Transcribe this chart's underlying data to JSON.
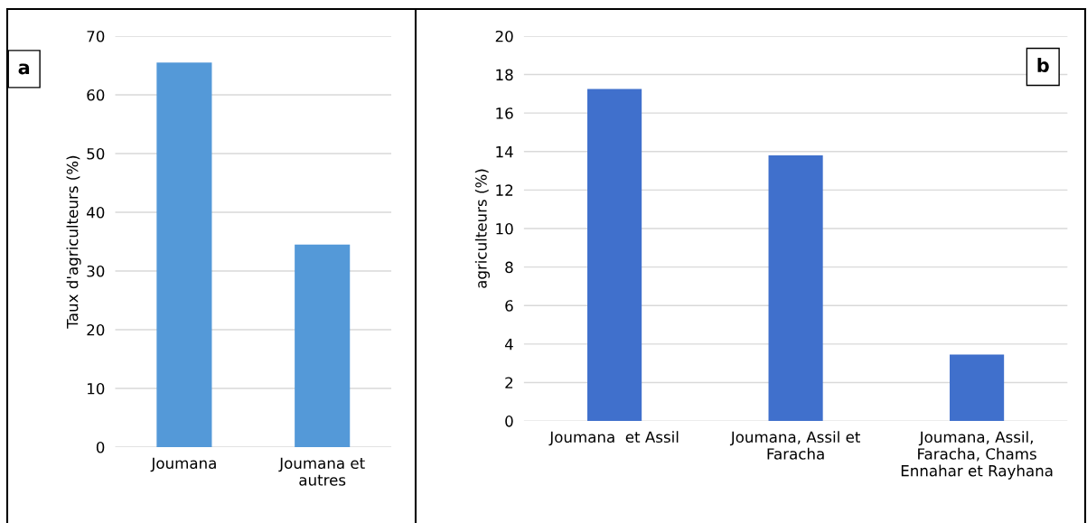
{
  "chart_data": [
    {
      "type": "bar",
      "ylabel": "Taux d'agriculteurs (%)",
      "annotations": [
        "a"
      ],
      "categories": [
        "Joumana",
        "Joumana et\nautres"
      ],
      "values": [
        65.5,
        34.5
      ],
      "color": "#5499d8",
      "ylim": [
        0,
        70
      ],
      "yticks": [
        0,
        10,
        20,
        30,
        40,
        50,
        60,
        70
      ],
      "grid": "y"
    },
    {
      "type": "bar",
      "ylabel": "agriculteurs (%)",
      "annotations": [
        "b"
      ],
      "categories": [
        "Joumana  et Assil",
        "Joumana, Assil et\nFaracha",
        "Joumana, Assil,\nFaracha, Chams\nEnnahar et Rayhana"
      ],
      "values": [
        17.25,
        13.8,
        3.45
      ],
      "color": "#4070cc",
      "ylim": [
        0,
        20
      ],
      "yticks": [
        0,
        2,
        4,
        6,
        8,
        10,
        12,
        14,
        16,
        18,
        20
      ],
      "grid": "y"
    }
  ]
}
